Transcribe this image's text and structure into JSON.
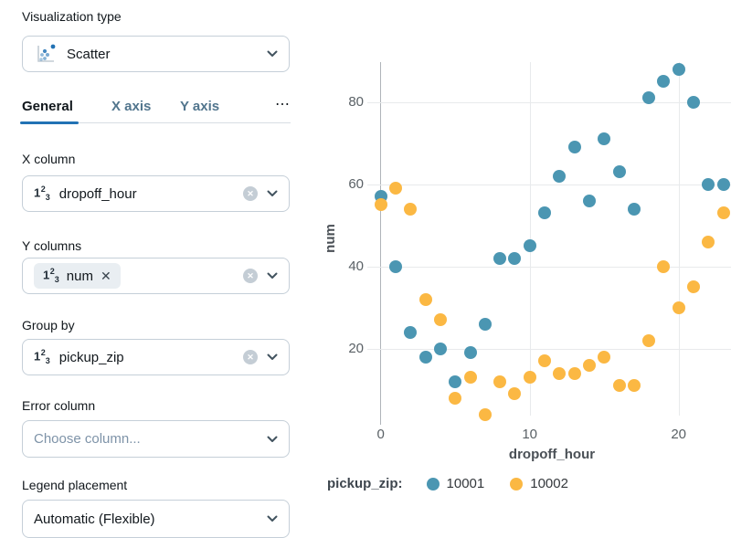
{
  "colors": {
    "accent": "#2272B4",
    "series_10001": "#4B96B2",
    "series_10002": "#FBB843",
    "gridline": "#E8EAEC",
    "axis_line": "#AFB4B9"
  },
  "sidebar": {
    "viz_type": {
      "label": "Visualization type",
      "value": "Scatter"
    },
    "tabs": {
      "general": "General",
      "x_axis": "X axis",
      "y_axis": "Y axis",
      "more": "⋯"
    },
    "x_column": {
      "label": "X column",
      "value": "dropoff_hour"
    },
    "y_columns": {
      "label": "Y columns",
      "value": "num"
    },
    "group_by": {
      "label": "Group by",
      "value": "pickup_zip"
    },
    "error_column": {
      "label": "Error column",
      "placeholder": "Choose column..."
    },
    "legend_placement": {
      "label": "Legend placement",
      "value": "Automatic (Flexible)"
    }
  },
  "chart_data": {
    "type": "scatter",
    "title": "",
    "xlabel": "dropoff_hour",
    "ylabel": "num",
    "x": [
      0,
      1,
      2,
      3,
      4,
      5,
      6,
      7,
      8,
      9,
      10,
      11,
      12,
      13,
      14,
      15,
      16,
      17,
      18,
      19,
      20,
      21,
      22,
      23
    ],
    "series": [
      {
        "name": "10001",
        "color": "#4B96B2",
        "values": [
          57,
          40,
          24,
          18,
          20,
          12,
          19,
          26,
          42,
          42,
          45,
          53,
          62,
          69,
          56,
          71,
          63,
          54,
          81,
          85,
          88,
          80,
          60,
          60
        ]
      },
      {
        "name": "10002",
        "color": "#FBB843",
        "values": [
          55,
          59,
          54,
          32,
          27,
          8,
          13,
          4,
          12,
          9,
          13,
          17,
          14,
          14,
          16,
          18,
          11,
          11,
          22,
          40,
          30,
          35,
          46,
          53
        ]
      }
    ],
    "xticks": [
      0,
      10,
      20
    ],
    "yticks": [
      20,
      40,
      60,
      80
    ],
    "xlim": [
      -0.8,
      23.5
    ],
    "ylim": [
      0,
      93
    ],
    "grid": true,
    "legend_title": "pickup_zip:",
    "legend_position": "bottom"
  }
}
